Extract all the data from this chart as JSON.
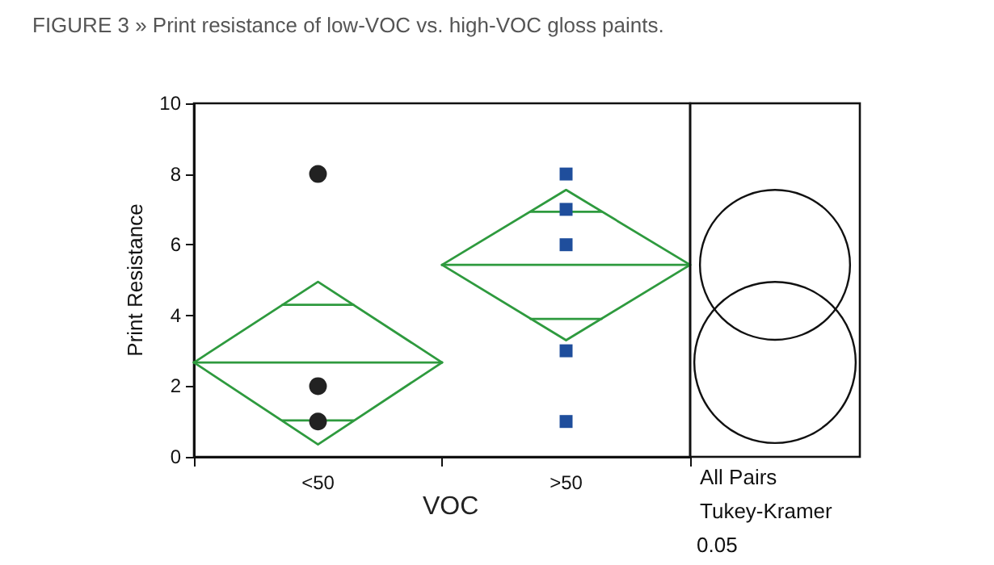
{
  "chart_data": {
    "type": "scatter",
    "title": "FIGURE 3 » Print resistance of low-VOC vs. high-VOC gloss paints.",
    "xlabel": "VOC",
    "ylabel": "Print Resistance",
    "categories": [
      null,
      null,
      null,
      null,
      null,
      null,
      null,
      "<50",
      null,
      null,
      null,
      null,
      null,
      null,
      null,
      null,
      null,
      null,
      null,
      null,
      null,
      ">50",
      null,
      null,
      null,
      null,
      null,
      null,
      null
    ],
    "series": [
      {
        "type": "line",
        "color": "#2e9a3e",
        "marker": "none",
        "values": [
          2.67,
          null,
          null,
          null,
          null,
          null,
          null,
          4.95,
          null,
          null,
          null,
          null,
          null,
          null,
          2.67,
          null,
          null,
          null,
          null,
          null,
          null,
          null,
          null,
          null,
          null,
          null,
          null,
          null,
          null
        ]
      },
      {
        "type": "line",
        "color": "#2e9a3e",
        "marker": "none",
        "values": [
          2.67,
          null,
          null,
          null,
          null,
          null,
          null,
          0.35,
          null,
          null,
          null,
          null,
          null,
          null,
          2.67,
          null,
          null,
          null,
          null,
          null,
          null,
          null,
          null,
          null,
          null,
          null,
          null,
          null,
          null
        ]
      },
      {
        "type": "line",
        "color": "#2e9a3e",
        "marker": "none",
        "values": [
          null,
          null,
          null,
          null,
          null,
          null,
          null,
          null,
          null,
          null,
          null,
          null,
          null,
          null,
          5.43,
          null,
          null,
          null,
          null,
          null,
          null,
          7.55,
          null,
          null,
          null,
          null,
          null,
          null,
          5.43
        ]
      },
      {
        "type": "line",
        "color": "#2e9a3e",
        "marker": "none",
        "values": [
          null,
          null,
          null,
          null,
          null,
          null,
          null,
          null,
          null,
          null,
          null,
          null,
          null,
          null,
          5.43,
          null,
          null,
          null,
          null,
          null,
          null,
          3.3,
          null,
          null,
          null,
          null,
          null,
          null,
          5.43
        ]
      },
      {
        "type": "line",
        "color": "#2e9a3e",
        "marker": "none",
        "values": [
          2.67,
          null,
          null,
          null,
          null,
          null,
          null,
          null,
          null,
          null,
          null,
          null,
          null,
          null,
          2.67,
          null,
          null,
          null,
          null,
          null,
          null,
          null,
          null,
          null,
          null,
          null,
          null,
          null,
          null
        ]
      },
      {
        "type": "line",
        "color": "#2e9a3e",
        "marker": "none",
        "values": [
          null,
          null,
          null,
          null,
          null,
          null,
          null,
          null,
          null,
          null,
          null,
          null,
          null,
          null,
          5.43,
          null,
          null,
          null,
          null,
          null,
          null,
          null,
          null,
          null,
          null,
          null,
          null,
          null,
          5.43
        ]
      },
      {
        "type": "line",
        "color": "#2e9a3e",
        "marker": "none",
        "values": [
          null,
          null,
          null,
          null,
          null,
          4.3,
          null,
          null,
          null,
          4.3,
          null,
          null,
          null,
          null,
          null,
          null,
          null,
          null,
          null,
          null,
          null,
          null,
          null,
          null,
          null,
          null,
          null,
          null,
          null
        ]
      },
      {
        "type": "line",
        "color": "#2e9a3e",
        "marker": "none",
        "values": [
          null,
          null,
          null,
          null,
          null,
          1.03,
          null,
          null,
          null,
          1.03,
          null,
          null,
          null,
          null,
          null,
          null,
          null,
          null,
          null,
          null,
          null,
          null,
          null,
          null,
          null,
          null,
          null,
          null,
          null
        ]
      },
      {
        "type": "line",
        "color": "#2e9a3e",
        "marker": "none",
        "values": [
          null,
          null,
          null,
          null,
          null,
          null,
          null,
          null,
          null,
          null,
          null,
          null,
          null,
          null,
          null,
          null,
          null,
          null,
          null,
          6.93,
          null,
          null,
          null,
          6.93,
          null,
          null,
          null,
          null,
          null
        ]
      },
      {
        "type": "line",
        "color": "#2e9a3e",
        "marker": "none",
        "values": [
          null,
          null,
          null,
          null,
          null,
          null,
          null,
          null,
          null,
          null,
          null,
          null,
          null,
          null,
          null,
          null,
          null,
          null,
          null,
          3.9,
          null,
          null,
          null,
          3.9,
          null,
          null,
          null,
          null,
          null
        ]
      },
      {
        "color": "#222222",
        "marker": "circle",
        "x": [
          "<50",
          "<50",
          "<50"
        ],
        "values": [
          8,
          2,
          1
        ]
      },
      {
        "color": "#1f4e9c",
        "marker": "square",
        "x": [
          ">50",
          ">50",
          ">50",
          ">50",
          ">50"
        ],
        "values": [
          8,
          7,
          6,
          3,
          1
        ]
      }
    ],
    "ylim": [
      0,
      10
    ],
    "yticks": [
      0,
      2,
      4,
      6,
      8,
      10
    ],
    "grid": false,
    "annotations": [
      "All Pairs",
      "Tukey-Kramer",
      "0.05"
    ]
  }
}
